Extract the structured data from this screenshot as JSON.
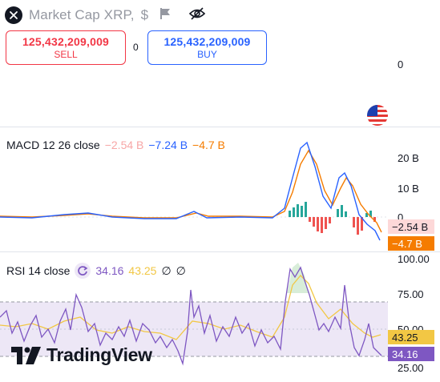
{
  "header": {
    "title": "Market Cap XRP",
    "separator": ",",
    "currency": "$"
  },
  "trade": {
    "sell_price": "125,432,209,009",
    "sell_label": "SELL",
    "spread": "0",
    "buy_price": "125,432,209,009",
    "buy_label": "BUY"
  },
  "main_axis": {
    "label": "0"
  },
  "macd": {
    "name": "MACD 12 26 close",
    "values": [
      "−2.54 B",
      "−7.24 B",
      "−4.7 B"
    ],
    "axis_labels": [
      "20 B",
      "10 B",
      "0"
    ],
    "badges": [
      "−2.54 B",
      "−4.7 B"
    ],
    "colors": {
      "macd": "#2962ff",
      "signal": "#f57c00",
      "hist_up": "#26a69a",
      "hist_down": "#ef5350"
    }
  },
  "rsi": {
    "name": "RSI 14 close",
    "values": [
      "34.16",
      "43.25",
      "∅",
      "∅"
    ],
    "axis_labels": [
      "100.00",
      "75.00",
      "50.00",
      "25.00"
    ],
    "badges": [
      "43.25",
      "34.16"
    ],
    "colors": {
      "rsi": "#7e57c2",
      "ma": "#f2c744",
      "band": "#ede7f6"
    }
  },
  "branding": {
    "logo_text": "TradingView"
  }
}
